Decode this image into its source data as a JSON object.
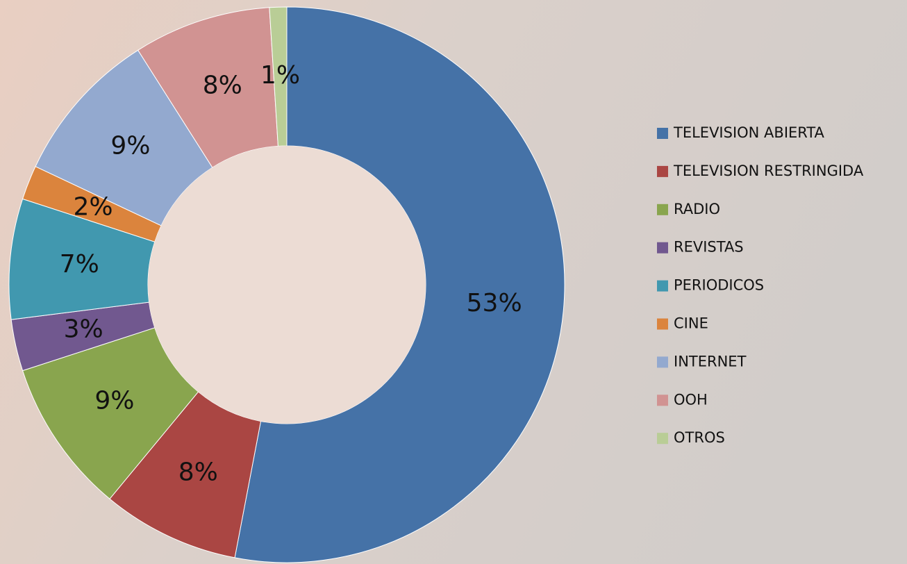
{
  "chart_data": {
    "type": "donut",
    "categories": [
      "TELEVISION ABIERTA",
      "TELEVISION RESTRINGIDA",
      "RADIO",
      "REVISTAS",
      "PERIODICOS",
      "CINE",
      "INTERNET",
      "OOH",
      "OTROS"
    ],
    "values": [
      53,
      8,
      9,
      3,
      7,
      2,
      9,
      8,
      1
    ],
    "value_labels": [
      "53%",
      "8%",
      "9%",
      "3%",
      "7%",
      "2%",
      "9%",
      "8%",
      "1%"
    ],
    "colors": [
      "#4572a7",
      "#aa4643",
      "#89a54e",
      "#71588f",
      "#4198af",
      "#db843d",
      "#93a9cf",
      "#d19392",
      "#b9cd96"
    ],
    "legend": "right"
  }
}
